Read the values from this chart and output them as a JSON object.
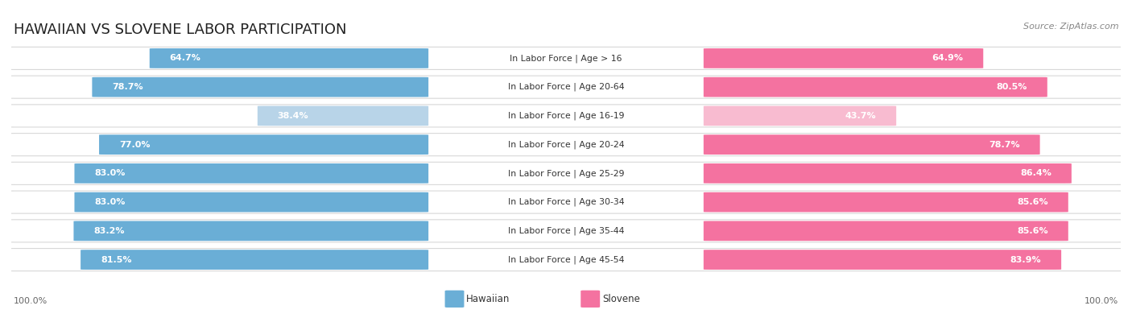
{
  "title": "HAWAIIAN VS SLOVENE LABOR PARTICIPATION",
  "source": "Source: ZipAtlas.com",
  "categories": [
    "In Labor Force | Age > 16",
    "In Labor Force | Age 20-64",
    "In Labor Force | Age 16-19",
    "In Labor Force | Age 20-24",
    "In Labor Force | Age 25-29",
    "In Labor Force | Age 30-34",
    "In Labor Force | Age 35-44",
    "In Labor Force | Age 45-54"
  ],
  "hawaiian": [
    64.7,
    78.7,
    38.4,
    77.0,
    83.0,
    83.0,
    83.2,
    81.5
  ],
  "slovene": [
    64.9,
    80.5,
    43.7,
    78.7,
    86.4,
    85.6,
    85.6,
    83.9
  ],
  "hawaiian_color": "#6aaed6",
  "hawaiian_color_light": "#b8d4e8",
  "slovene_color": "#f472a0",
  "slovene_color_light": "#f8bbd0",
  "max_val": 100.0,
  "row_bg": "#f5f5f5",
  "row_border": "#d8d8d8",
  "title_fontsize": 13,
  "label_fontsize": 8.0,
  "category_fontsize": 7.8,
  "legend_fontsize": 8.5,
  "footer_fontsize": 8.0,
  "light_threshold": 50
}
